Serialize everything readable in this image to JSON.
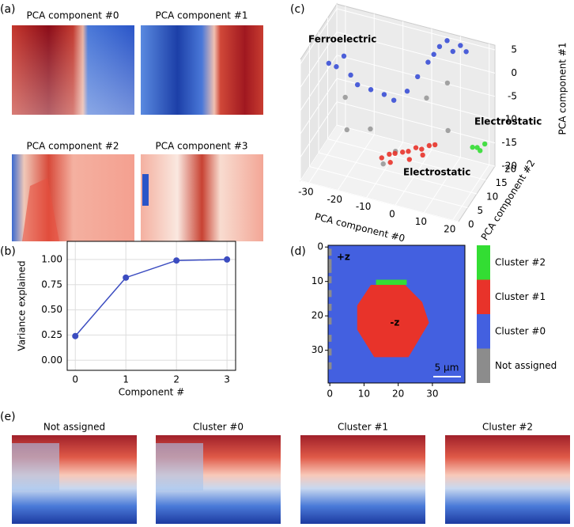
{
  "panel_labels": [
    "(a)",
    "(b)",
    "(c)",
    "(d)",
    "(e)"
  ],
  "pca_maps": {
    "titles": [
      "PCA component #0",
      "PCA component #1",
      "PCA component #2",
      "PCA component #3"
    ]
  },
  "cluster_maps": {
    "titles": [
      "Not assigned",
      "Cluster #0",
      "Cluster #1",
      "Cluster #2"
    ]
  },
  "chart_data": [
    {
      "type": "line",
      "x": [
        0,
        1,
        2,
        3
      ],
      "values": [
        0.24,
        0.82,
        0.99,
        1.0
      ],
      "color": "#3b4cc0",
      "xlabel": "Component #",
      "ylabel": "Variance explained",
      "xlim": [
        -0.16,
        3.17
      ],
      "ylim": [
        -0.1,
        1.18
      ],
      "xticks": [
        0,
        1,
        2,
        3
      ],
      "yticks": [
        {
          "value": 0,
          "label": "0.00"
        },
        {
          "value": 0.25,
          "label": "0.25"
        },
        {
          "value": 0.5,
          "label": "0.50"
        },
        {
          "value": 0.75,
          "label": "0.75"
        },
        {
          "value": 1,
          "label": "1.00"
        }
      ],
      "grid": true
    },
    {
      "type": "scatter3d",
      "xlabel": "PCA component #0",
      "ylabel": "PCA component #2",
      "zlabel": "PCA component #1",
      "xlim": [
        -33,
        22
      ],
      "ylim": [
        0,
        20
      ],
      "zlim": [
        -20,
        6
      ],
      "xticks": [
        -30,
        -20,
        -10,
        0,
        10,
        20
      ],
      "yticks": [
        0,
        5,
        10,
        15,
        20
      ],
      "zticks": [
        -20,
        -15,
        -10,
        -5,
        0,
        5
      ],
      "series": [
        {
          "color": "#999999",
          "x": [
            -25,
            -15,
            -5,
            2,
            8,
            -20,
            12,
            -8
          ],
          "y": [
            12,
            10,
            8,
            14,
            16,
            5,
            10,
            6
          ],
          "z": [
            -8,
            -12,
            -14,
            -5,
            -2,
            -10,
            -8,
            -16
          ]
        },
        {
          "name": "Ferroelectric",
          "color": "#3a4fd6",
          "x": [
            -32,
            -30,
            -28,
            -25,
            -22,
            -18,
            -14,
            -10,
            -6,
            -3,
            0,
            2,
            4,
            6,
            8,
            10,
            12
          ],
          "y": [
            14,
            15,
            16,
            15,
            14,
            15,
            16,
            15,
            16,
            17,
            18,
            18,
            18,
            19,
            19,
            20,
            20
          ],
          "z": [
            -3,
            -4,
            -2,
            -5,
            -6,
            -7,
            -8,
            -8,
            -6,
            -3,
            0,
            2,
            4,
            5,
            3,
            4,
            3
          ]
        },
        {
          "name": "Electrostatic",
          "color": "#33dd33",
          "x": [
            18,
            19,
            20,
            21
          ],
          "y": [
            14,
            15,
            15,
            16
          ],
          "z": [
            -13,
            -13.5,
            -14,
            -13
          ]
        },
        {
          "name": "Electrostatic",
          "color": "#e8332a",
          "x": [
            -6,
            -4,
            -2,
            0,
            2,
            4,
            6,
            8,
            10,
            -3,
            3,
            7
          ],
          "y": [
            2,
            3,
            3,
            4,
            4,
            5,
            5,
            6,
            6,
            2,
            3,
            4
          ],
          "z": [
            -12,
            -11.5,
            -11,
            -11,
            -10.5,
            -10,
            -10,
            -9.5,
            -9,
            -12.5,
            -11.5,
            -10.5
          ]
        }
      ]
    },
    {
      "type": "image",
      "xlim": [
        -0.5,
        39.5
      ],
      "ylim": [
        39.5,
        -0.5
      ],
      "xticks": [
        0,
        10,
        20,
        30
      ],
      "yticks": [
        0,
        10,
        20,
        30
      ],
      "annotations": [
        "+z",
        "-z",
        "5 µm"
      ],
      "legend": [
        {
          "name": "Cluster #2",
          "color": "#33dd33"
        },
        {
          "name": "Cluster #1",
          "color": "#e8332a"
        },
        {
          "name": "Cluster #0",
          "color": "#4360e0"
        },
        {
          "name": "Not assigned",
          "color": "#8c8c8c"
        }
      ]
    }
  ]
}
